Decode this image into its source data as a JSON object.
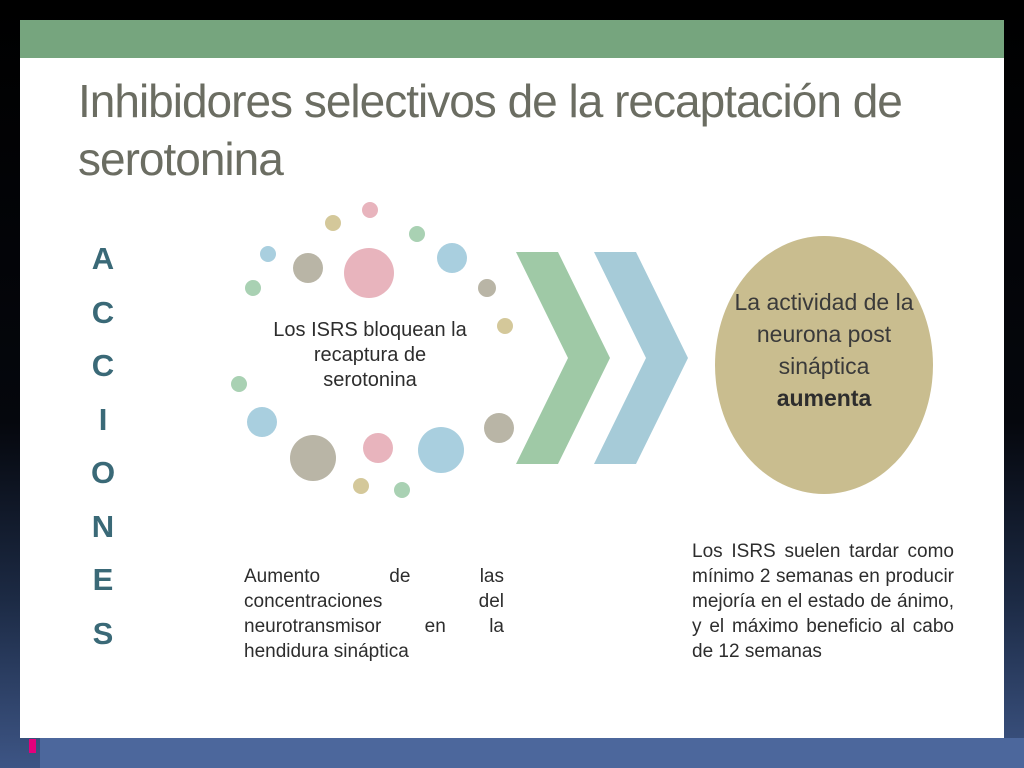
{
  "title": "Inhibidores selectivos de la recaptación de serotonina",
  "vertical_word": [
    "A",
    "C",
    "C",
    "I",
    "O",
    "N",
    "E",
    "S"
  ],
  "center_text": "Los ISRS bloquean la recaptura de serotonina",
  "result": {
    "text": "La actividad de la neurona post sináptica",
    "bold": "aumenta"
  },
  "left_para": "Aumento de las concentraciones del neurotransmisor en la hendidura sináptica",
  "right_para": "Los ISRS suelen tardar como mínimo 2 semanas en producir mejoría en el estado de ánimo, y el máximo beneficio al cabo de 12 semanas",
  "colors": {
    "top_bar": "#76a57e",
    "title": "#6b6d62",
    "vertical_word": "#3a6977",
    "chevron_green": "#9fc9a6",
    "chevron_blue": "#a6cbd8",
    "result_circle": "#c9bd8f",
    "dot_pink": "#e8b4bd",
    "dot_blue": "#a9cfdf",
    "dot_gray": "#b9b5a6",
    "dot_olive": "#d4c89a",
    "dot_green": "#a9d1b3",
    "bottom_bar": "#4c679c",
    "accent_marker": "#e4007c"
  }
}
